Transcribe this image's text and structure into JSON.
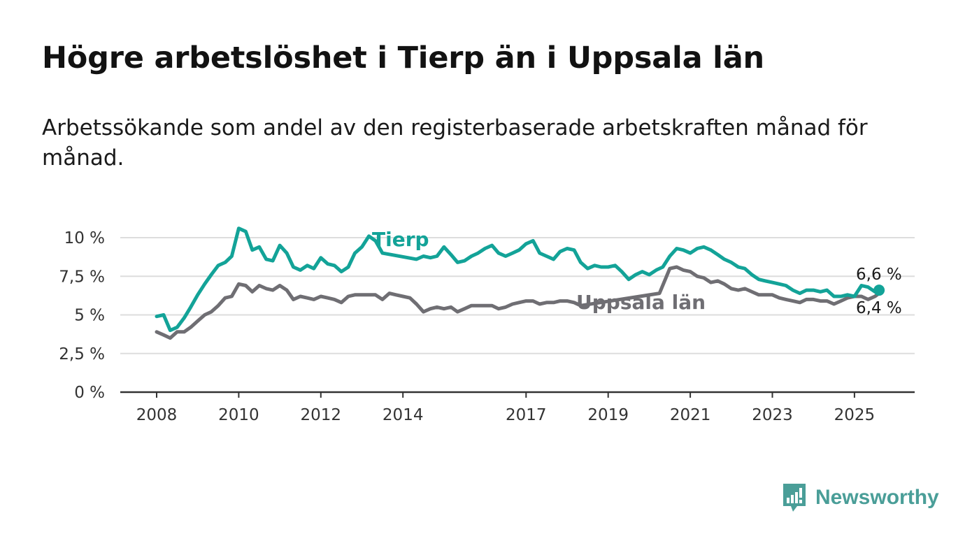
{
  "title": "Högre arbetslöshet i Tierp än i Uppsala län",
  "subtitle": "Arbetssökande som andel av den registerbaserade arbetskraften månad för månad.",
  "brand": {
    "name": "Newsworthy"
  },
  "colors": {
    "tierp": "#13a398",
    "uppsala": "#6f6e73",
    "grid": "#dddddd",
    "axis": "#333333"
  },
  "chart_data": {
    "type": "line",
    "title": "Högre arbetslöshet i Tierp än i Uppsala län",
    "xlabel": "",
    "ylabel": "",
    "xlim": [
      2008.0,
      2025.6
    ],
    "ylim": [
      0,
      10
    ],
    "x_ticks": [
      2008,
      2010,
      2012,
      2014,
      2017,
      2019,
      2021,
      2023,
      2025
    ],
    "x_tick_labels": [
      "2008",
      "2010",
      "2012",
      "2014",
      "2017",
      "2019",
      "2021",
      "2023",
      "2025"
    ],
    "y_ticks": [
      0,
      2.5,
      5,
      7.5,
      10
    ],
    "y_tick_labels": [
      "0 %",
      "2,5 %",
      "5 %",
      "7,5 %",
      "10 %"
    ],
    "grid": true,
    "series": [
      {
        "name": "Tierp",
        "points": [
          [
            2008.0,
            4.9
          ],
          [
            2008.17,
            5.0
          ],
          [
            2008.33,
            4.0
          ],
          [
            2008.5,
            4.2
          ],
          [
            2008.67,
            4.8
          ],
          [
            2008.83,
            5.5
          ],
          [
            2009.0,
            6.3
          ],
          [
            2009.17,
            7.0
          ],
          [
            2009.33,
            7.6
          ],
          [
            2009.5,
            8.2
          ],
          [
            2009.67,
            8.4
          ],
          [
            2009.83,
            8.8
          ],
          [
            2010.0,
            10.6
          ],
          [
            2010.17,
            10.4
          ],
          [
            2010.33,
            9.2
          ],
          [
            2010.5,
            9.4
          ],
          [
            2010.67,
            8.6
          ],
          [
            2010.83,
            8.5
          ],
          [
            2011.0,
            9.5
          ],
          [
            2011.17,
            9.0
          ],
          [
            2011.33,
            8.1
          ],
          [
            2011.5,
            7.9
          ],
          [
            2011.67,
            8.2
          ],
          [
            2011.83,
            8.0
          ],
          [
            2012.0,
            8.7
          ],
          [
            2012.17,
            8.3
          ],
          [
            2012.33,
            8.2
          ],
          [
            2012.5,
            7.8
          ],
          [
            2012.67,
            8.1
          ],
          [
            2012.83,
            9.0
          ],
          [
            2013.0,
            9.4
          ],
          [
            2013.17,
            10.1
          ],
          [
            2013.33,
            9.8
          ],
          [
            2013.5,
            9.0
          ],
          [
            2014.33,
            8.6
          ],
          [
            2014.5,
            8.8
          ],
          [
            2014.67,
            8.7
          ],
          [
            2014.83,
            8.8
          ],
          [
            2015.0,
            9.4
          ],
          [
            2015.17,
            8.9
          ],
          [
            2015.33,
            8.4
          ],
          [
            2015.5,
            8.5
          ],
          [
            2015.67,
            8.8
          ],
          [
            2015.83,
            9.0
          ],
          [
            2016.0,
            9.3
          ],
          [
            2016.17,
            9.5
          ],
          [
            2016.33,
            9.0
          ],
          [
            2016.5,
            8.8
          ],
          [
            2016.67,
            9.0
          ],
          [
            2016.83,
            9.2
          ],
          [
            2017.0,
            9.6
          ],
          [
            2017.17,
            9.8
          ],
          [
            2017.33,
            9.0
          ],
          [
            2017.5,
            8.8
          ],
          [
            2017.67,
            8.6
          ],
          [
            2017.83,
            9.1
          ],
          [
            2018.0,
            9.3
          ],
          [
            2018.17,
            9.2
          ],
          [
            2018.33,
            8.4
          ],
          [
            2018.5,
            8.0
          ],
          [
            2018.67,
            8.2
          ],
          [
            2018.83,
            8.1
          ],
          [
            2019.0,
            8.1
          ],
          [
            2019.17,
            8.2
          ],
          [
            2019.33,
            7.8
          ],
          [
            2019.5,
            7.3
          ],
          [
            2019.67,
            7.6
          ],
          [
            2019.83,
            7.8
          ],
          [
            2020.0,
            7.6
          ],
          [
            2020.17,
            7.9
          ],
          [
            2020.33,
            8.1
          ],
          [
            2020.5,
            8.8
          ],
          [
            2020.67,
            9.3
          ],
          [
            2020.83,
            9.2
          ],
          [
            2021.0,
            9.0
          ],
          [
            2021.17,
            9.3
          ],
          [
            2021.33,
            9.4
          ],
          [
            2021.5,
            9.2
          ],
          [
            2021.67,
            8.9
          ],
          [
            2021.83,
            8.6
          ],
          [
            2022.0,
            8.4
          ],
          [
            2022.17,
            8.1
          ],
          [
            2022.33,
            8.0
          ],
          [
            2022.5,
            7.6
          ],
          [
            2022.67,
            7.3
          ],
          [
            2022.83,
            7.2
          ],
          [
            2023.0,
            7.1
          ],
          [
            2023.17,
            7.0
          ],
          [
            2023.33,
            6.9
          ],
          [
            2023.5,
            6.6
          ],
          [
            2023.67,
            6.4
          ],
          [
            2023.83,
            6.6
          ],
          [
            2024.0,
            6.6
          ],
          [
            2024.17,
            6.5
          ],
          [
            2024.33,
            6.6
          ],
          [
            2024.5,
            6.2
          ],
          [
            2024.67,
            6.2
          ],
          [
            2024.83,
            6.3
          ],
          [
            2025.0,
            6.2
          ],
          [
            2025.17,
            6.9
          ],
          [
            2025.33,
            6.8
          ],
          [
            2025.5,
            6.5
          ],
          [
            2025.6,
            6.6
          ]
        ]
      },
      {
        "name": "Uppsala län",
        "points": [
          [
            2008.0,
            3.9
          ],
          [
            2008.17,
            3.7
          ],
          [
            2008.33,
            3.5
          ],
          [
            2008.5,
            3.9
          ],
          [
            2008.67,
            3.9
          ],
          [
            2008.83,
            4.2
          ],
          [
            2009.0,
            4.6
          ],
          [
            2009.17,
            5.0
          ],
          [
            2009.33,
            5.2
          ],
          [
            2009.5,
            5.6
          ],
          [
            2009.67,
            6.1
          ],
          [
            2009.83,
            6.2
          ],
          [
            2010.0,
            7.0
          ],
          [
            2010.17,
            6.9
          ],
          [
            2010.33,
            6.5
          ],
          [
            2010.5,
            6.9
          ],
          [
            2010.67,
            6.7
          ],
          [
            2010.83,
            6.6
          ],
          [
            2011.0,
            6.9
          ],
          [
            2011.17,
            6.6
          ],
          [
            2011.33,
            6.0
          ],
          [
            2011.5,
            6.2
          ],
          [
            2011.67,
            6.1
          ],
          [
            2011.83,
            6.0
          ],
          [
            2012.0,
            6.2
          ],
          [
            2012.17,
            6.1
          ],
          [
            2012.33,
            6.0
          ],
          [
            2012.5,
            5.8
          ],
          [
            2012.67,
            6.2
          ],
          [
            2012.83,
            6.3
          ],
          [
            2013.0,
            6.3
          ],
          [
            2013.17,
            6.3
          ],
          [
            2013.33,
            6.3
          ],
          [
            2013.5,
            6.0
          ],
          [
            2013.67,
            6.4
          ],
          [
            2013.83,
            6.3
          ],
          [
            2014.0,
            6.2
          ],
          [
            2014.17,
            6.1
          ],
          [
            2014.33,
            5.7
          ],
          [
            2014.5,
            5.2
          ],
          [
            2014.67,
            5.4
          ],
          [
            2014.83,
            5.5
          ],
          [
            2015.0,
            5.4
          ],
          [
            2015.17,
            5.5
          ],
          [
            2015.33,
            5.2
          ],
          [
            2015.5,
            5.4
          ],
          [
            2015.67,
            5.6
          ],
          [
            2015.83,
            5.6
          ],
          [
            2016.0,
            5.6
          ],
          [
            2016.17,
            5.6
          ],
          [
            2016.33,
            5.4
          ],
          [
            2016.5,
            5.5
          ],
          [
            2016.67,
            5.7
          ],
          [
            2016.83,
            5.8
          ],
          [
            2017.0,
            5.9
          ],
          [
            2017.17,
            5.9
          ],
          [
            2017.33,
            5.7
          ],
          [
            2017.5,
            5.8
          ],
          [
            2017.67,
            5.8
          ],
          [
            2017.83,
            5.9
          ],
          [
            2018.0,
            5.9
          ],
          [
            2018.17,
            5.8
          ],
          [
            2018.33,
            5.6
          ],
          [
            2020.25,
            6.4
          ],
          [
            2020.5,
            8.0
          ],
          [
            2020.67,
            8.1
          ],
          [
            2020.83,
            7.9
          ],
          [
            2021.0,
            7.8
          ],
          [
            2021.17,
            7.5
          ],
          [
            2021.33,
            7.4
          ],
          [
            2021.5,
            7.1
          ],
          [
            2021.67,
            7.2
          ],
          [
            2021.83,
            7.0
          ],
          [
            2022.0,
            6.7
          ],
          [
            2022.17,
            6.6
          ],
          [
            2022.33,
            6.7
          ],
          [
            2022.5,
            6.5
          ],
          [
            2022.67,
            6.3
          ],
          [
            2022.83,
            6.3
          ],
          [
            2023.0,
            6.3
          ],
          [
            2023.17,
            6.1
          ],
          [
            2023.33,
            6.0
          ],
          [
            2023.5,
            5.9
          ],
          [
            2023.67,
            5.8
          ],
          [
            2023.83,
            6.0
          ],
          [
            2024.0,
            6.0
          ],
          [
            2024.17,
            5.9
          ],
          [
            2024.33,
            5.9
          ],
          [
            2024.5,
            5.7
          ],
          [
            2024.67,
            5.9
          ],
          [
            2024.83,
            6.1
          ],
          [
            2025.0,
            6.2
          ],
          [
            2025.17,
            6.2
          ],
          [
            2025.33,
            6.0
          ],
          [
            2025.5,
            6.2
          ],
          [
            2025.6,
            6.4
          ]
        ]
      }
    ],
    "series_labels": [
      "Tierp",
      "Uppsala län"
    ],
    "end_labels": [
      {
        "series": "Tierp",
        "text": "6,6 %"
      },
      {
        "series": "Uppsala län",
        "text": "6,4 %"
      }
    ]
  }
}
